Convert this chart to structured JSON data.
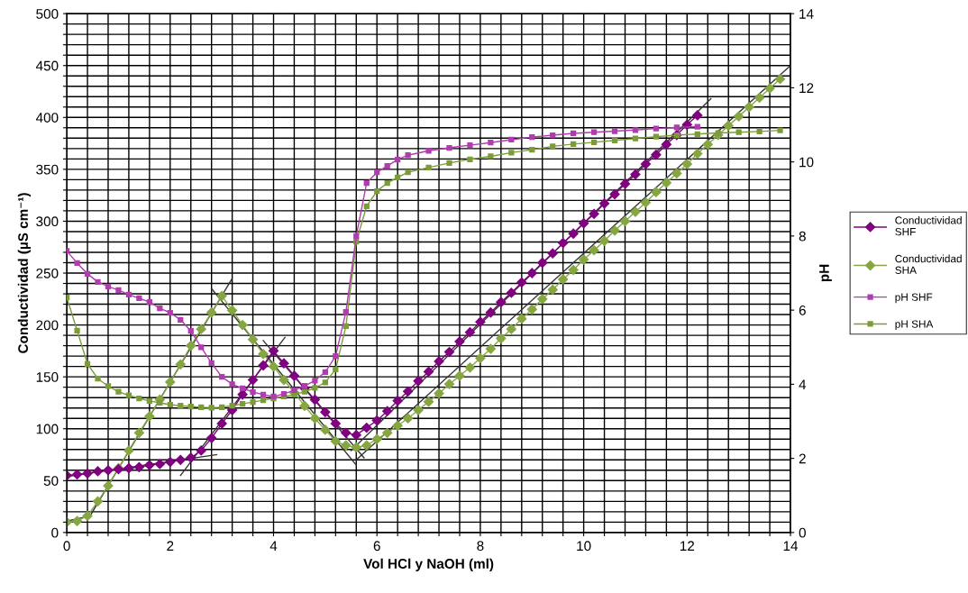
{
  "chart_data": {
    "type": "line",
    "xlabel": "Vol HCl y NaOH (ml)",
    "ylabel": "Conductividad (µS cm⁻¹)",
    "y2label": "pH",
    "xlim": [
      0,
      14
    ],
    "ylim": [
      0,
      500
    ],
    "y2lim": [
      0,
      14
    ],
    "xticks": [
      0,
      {
        "value": 0.4,
        "label": null
      },
      {
        "value": 0.8,
        "label": null
      },
      {
        "value": 1.2,
        "label": null
      },
      {
        "value": 1.6,
        "label": null
      },
      2,
      {
        "value": 2.4,
        "label": null
      },
      {
        "value": 2.8,
        "label": null
      },
      {
        "value": 3.2,
        "label": null
      },
      {
        "value": 3.6,
        "label": null
      },
      4,
      {
        "value": 4.4,
        "label": null
      },
      {
        "value": 4.8,
        "label": null
      },
      {
        "value": 5.2,
        "label": null
      },
      {
        "value": 5.6,
        "label": null
      },
      6,
      {
        "value": 6.4,
        "label": null
      },
      {
        "value": 6.8,
        "label": null
      },
      {
        "value": 7.2,
        "label": null
      },
      {
        "value": 7.6,
        "label": null
      },
      8,
      {
        "value": 8.4,
        "label": null
      },
      {
        "value": 8.8,
        "label": null
      },
      {
        "value": 9.2,
        "label": null
      },
      {
        "value": 9.6,
        "label": null
      },
      10,
      {
        "value": 10.4,
        "label": null
      },
      {
        "value": 10.8,
        "label": null
      },
      {
        "value": 11.2,
        "label": null
      },
      {
        "value": 11.6,
        "label": null
      },
      12,
      {
        "value": 12.4,
        "label": null
      },
      {
        "value": 12.8,
        "label": null
      },
      {
        "value": 13.2,
        "label": null
      },
      {
        "value": 13.6,
        "label": null
      },
      14
    ],
    "yticks": [
      0,
      {
        "value": 10,
        "label": null
      },
      {
        "value": 20,
        "label": null
      },
      {
        "value": 30,
        "label": null
      },
      {
        "value": 40,
        "label": null
      },
      50,
      {
        "value": 60,
        "label": null
      },
      {
        "value": 70,
        "label": null
      },
      {
        "value": 80,
        "label": null
      },
      {
        "value": 90,
        "label": null
      },
      100,
      {
        "value": 110,
        "label": null
      },
      {
        "value": 120,
        "label": null
      },
      {
        "value": 130,
        "label": null
      },
      {
        "value": 140,
        "label": null
      },
      150,
      {
        "value": 160,
        "label": null
      },
      {
        "value": 170,
        "label": null
      },
      {
        "value": 180,
        "label": null
      },
      {
        "value": 190,
        "label": null
      },
      200,
      {
        "value": 210,
        "label": null
      },
      {
        "value": 220,
        "label": null
      },
      {
        "value": 230,
        "label": null
      },
      {
        "value": 240,
        "label": null
      },
      250,
      {
        "value": 260,
        "label": null
      },
      {
        "value": 270,
        "label": null
      },
      {
        "value": 280,
        "label": null
      },
      {
        "value": 290,
        "label": null
      },
      300,
      {
        "value": 310,
        "label": null
      },
      {
        "value": 320,
        "label": null
      },
      {
        "value": 330,
        "label": null
      },
      {
        "value": 340,
        "label": null
      },
      350,
      {
        "value": 360,
        "label": null
      },
      {
        "value": 370,
        "label": null
      },
      {
        "value": 380,
        "label": null
      },
      {
        "value": 390,
        "label": null
      },
      400,
      {
        "value": 410,
        "label": null
      },
      {
        "value": 420,
        "label": null
      },
      {
        "value": 430,
        "label": null
      },
      {
        "value": 440,
        "label": null
      },
      450,
      {
        "value": 460,
        "label": null
      },
      {
        "value": 470,
        "label": null
      },
      {
        "value": 480,
        "label": null
      },
      {
        "value": 490,
        "label": null
      },
      500
    ],
    "y2ticks": [
      0,
      2,
      4,
      6,
      8,
      10,
      12,
      14
    ],
    "grid": true,
    "legend": "right",
    "series": [
      {
        "name": "Conductividad SHF",
        "color": "#800080",
        "marker": "diamond",
        "x": [
          0,
          0.2,
          0.4,
          0.6,
          0.8,
          1.0,
          1.2,
          1.4,
          1.6,
          1.8,
          2.0,
          2.2,
          2.4,
          2.6,
          2.8,
          3.0,
          3.2,
          3.4,
          3.6,
          3.8,
          4.0,
          4.2,
          4.4,
          4.6,
          4.8,
          5.0,
          5.2,
          5.4,
          5.6,
          5.8,
          6.0,
          6.2,
          6.4,
          6.6,
          6.8,
          7.0,
          7.2,
          7.4,
          7.6,
          7.8,
          8.0,
          8.2,
          8.4,
          8.6,
          8.8,
          9.0,
          9.2,
          9.4,
          9.6,
          9.8,
          10.0,
          10.2,
          10.4,
          10.6,
          10.8,
          11.0,
          11.2,
          11.4,
          11.6,
          11.8,
          12.0,
          12.2
        ],
        "values": [
          55,
          56,
          57,
          59,
          60,
          61,
          62,
          63,
          65,
          66,
          68,
          70,
          72,
          79,
          91,
          105,
          118,
          133,
          147,
          161,
          175,
          163,
          151,
          139,
          128,
          116,
          105,
          96,
          94,
          101,
          108,
          117,
          127,
          136,
          146,
          155,
          165,
          174,
          184,
          193,
          203,
          212,
          222,
          231,
          241,
          250,
          260,
          269,
          279,
          288,
          298,
          307,
          317,
          326,
          336,
          345,
          355,
          364,
          374,
          383,
          393,
          402
        ]
      },
      {
        "name": "Conductividad SHA",
        "color": "#86a642",
        "marker": "diamond",
        "x": [
          0,
          0.2,
          0.4,
          0.6,
          0.8,
          1.0,
          1.2,
          1.4,
          1.6,
          1.8,
          2.0,
          2.2,
          2.4,
          2.6,
          2.8,
          3.0,
          3.2,
          3.4,
          3.6,
          3.8,
          4.0,
          4.2,
          4.4,
          4.6,
          4.8,
          5.0,
          5.2,
          5.4,
          5.6,
          5.8,
          6.0,
          6.2,
          6.4,
          6.6,
          6.8,
          7.0,
          7.2,
          7.4,
          7.6,
          7.8,
          8.0,
          8.2,
          8.4,
          8.6,
          8.8,
          9.0,
          9.2,
          9.4,
          9.6,
          9.8,
          10.0,
          10.2,
          10.4,
          10.6,
          10.8,
          11.0,
          11.2,
          11.4,
          11.6,
          11.8,
          12.0,
          12.2,
          12.4,
          12.6,
          12.8,
          13.0,
          13.2,
          13.4,
          13.6,
          13.8
        ],
        "values": [
          10,
          11,
          16,
          30,
          45,
          62,
          79,
          96,
          112,
          128,
          145,
          162,
          180,
          196,
          212,
          228,
          214,
          200,
          186,
          172,
          160,
          147,
          135,
          122,
          110,
          99,
          88,
          84,
          82,
          84,
          90,
          96,
          103,
          110,
          118,
          126,
          134,
          143,
          151,
          159,
          168,
          177,
          187,
          196,
          206,
          215,
          225,
          234,
          244,
          253,
          263,
          272,
          281,
          291,
          300,
          309,
          318,
          328,
          337,
          346,
          355,
          365,
          374,
          383,
          392,
          401,
          410,
          419,
          428,
          437
        ]
      },
      {
        "name": "pH SHF",
        "color": "#b03cb0",
        "marker": "square",
        "axis": "y2",
        "x": [
          0,
          0.2,
          0.4,
          0.6,
          0.8,
          1.0,
          1.2,
          1.4,
          1.6,
          1.8,
          2.0,
          2.2,
          2.4,
          2.6,
          2.8,
          3.0,
          3.2,
          3.4,
          3.6,
          3.8,
          4.0,
          4.2,
          4.4,
          4.6,
          4.8,
          5.0,
          5.2,
          5.4,
          5.6,
          5.8,
          6.0,
          6.2,
          6.4,
          6.6,
          7.0,
          7.4,
          7.8,
          8.2,
          8.6,
          9.0,
          9.4,
          9.8,
          10.2,
          10.6,
          11.0,
          11.4,
          11.8,
          12.2
        ],
        "values": [
          7.6,
          7.27,
          6.98,
          6.76,
          6.64,
          6.54,
          6.42,
          6.32,
          6.22,
          6.05,
          5.93,
          5.74,
          5.44,
          5.0,
          4.57,
          4.2,
          4.0,
          3.89,
          3.79,
          3.72,
          3.67,
          3.74,
          3.84,
          3.96,
          4.1,
          4.33,
          4.76,
          5.95,
          8.0,
          9.43,
          9.72,
          9.89,
          10.06,
          10.18,
          10.3,
          10.38,
          10.45,
          10.52,
          10.6,
          10.67,
          10.72,
          10.77,
          10.8,
          10.83,
          10.86,
          10.9,
          10.93,
          10.95
        ]
      },
      {
        "name": "pH SHA",
        "color": "#7c9c38",
        "marker": "square",
        "axis": "y2",
        "x": [
          0,
          0.2,
          0.4,
          0.6,
          0.8,
          1.0,
          1.2,
          1.4,
          1.6,
          1.8,
          2.0,
          2.2,
          2.4,
          2.6,
          2.8,
          3.0,
          3.2,
          3.4,
          3.6,
          3.8,
          4.0,
          4.2,
          4.4,
          4.6,
          4.8,
          5.0,
          5.2,
          5.4,
          5.6,
          5.8,
          6.0,
          6.2,
          6.4,
          6.6,
          7.0,
          7.4,
          7.8,
          8.2,
          8.6,
          9.0,
          9.4,
          9.8,
          10.2,
          10.6,
          11.0,
          11.4,
          11.8,
          12.2,
          12.6,
          13.0,
          13.4,
          13.8
        ],
        "values": [
          6.34,
          5.45,
          4.55,
          4.15,
          3.95,
          3.8,
          3.7,
          3.62,
          3.55,
          3.5,
          3.45,
          3.42,
          3.4,
          3.38,
          3.37,
          3.38,
          3.42,
          3.47,
          3.52,
          3.57,
          3.62,
          3.67,
          3.72,
          3.8,
          3.9,
          4.05,
          4.4,
          5.57,
          7.85,
          8.8,
          9.21,
          9.43,
          9.58,
          9.72,
          9.85,
          9.97,
          10.07,
          10.15,
          10.25,
          10.33,
          10.42,
          10.48,
          10.53,
          10.58,
          10.63,
          10.68,
          10.72,
          10.75,
          10.78,
          10.8,
          10.82,
          10.85
        ]
      },
      {
        "type": "line",
        "color": "#333333",
        "x": [
          0,
          2.9
        ],
        "values": [
          54,
          75
        ]
      },
      {
        "type": "line",
        "color": "#333333",
        "x": [
          2.2,
          4.22
        ],
        "values": [
          55,
          188
        ]
      },
      {
        "type": "line",
        "color": "#333333",
        "x": [
          3.8,
          5.75
        ],
        "values": [
          185,
          72
        ]
      },
      {
        "type": "line",
        "color": "#333333",
        "x": [
          5.5,
          12.46
        ],
        "values": [
          79,
          418
        ]
      },
      {
        "type": "line",
        "color": "#333333",
        "x": [
          0,
          0.45
        ],
        "values": [
          11,
          16
        ]
      },
      {
        "type": "line",
        "color": "#333333",
        "x": [
          0.45,
          3.19
        ],
        "values": [
          16,
          244
        ]
      },
      {
        "type": "line",
        "color": "#333333",
        "x": [
          2.8,
          5.6
        ],
        "values": [
          235,
          65
        ]
      },
      {
        "type": "line",
        "color": "#333333",
        "x": [
          5.6,
          14
        ],
        "values": [
          70,
          450
        ]
      }
    ]
  }
}
